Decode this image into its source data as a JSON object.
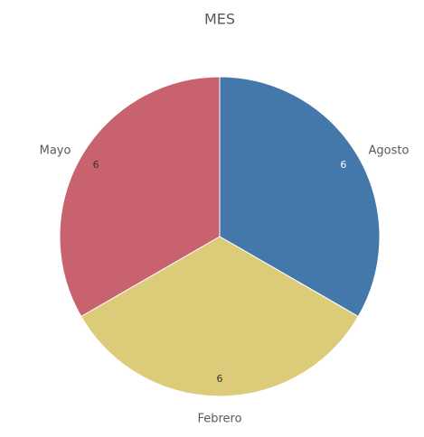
{
  "chart_data": {
    "type": "pie",
    "title": "MES",
    "categories": [
      "Agosto",
      "Febrero",
      "Mayo"
    ],
    "values": [
      6,
      6,
      6
    ],
    "colors": [
      "#4477aa",
      "#dccb78",
      "#c8626f"
    ]
  }
}
